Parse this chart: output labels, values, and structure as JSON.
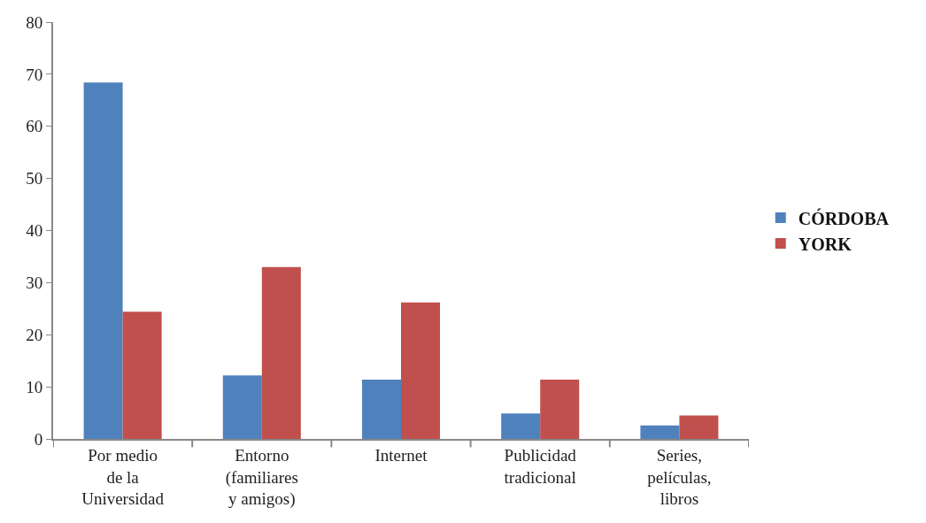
{
  "chart_data": {
    "type": "bar",
    "categories": [
      "Por medio de la Universidad",
      "Entorno (familiares y amigos)",
      "Internet",
      "Publicidad tradicional",
      "Series, películas, libros"
    ],
    "series": [
      {
        "name": "CÓRDOBA",
        "color": "#4f81bd",
        "values": [
          68.4,
          12.2,
          11.4,
          4.9,
          2.6
        ]
      },
      {
        "name": "YORK",
        "color": "#c0504d",
        "values": [
          24.4,
          33.0,
          26.2,
          11.4,
          4.5
        ]
      }
    ],
    "ylim": [
      0,
      80
    ],
    "yticks": [
      0,
      10,
      20,
      30,
      40,
      50,
      60,
      70,
      80
    ],
    "legend": "right"
  }
}
